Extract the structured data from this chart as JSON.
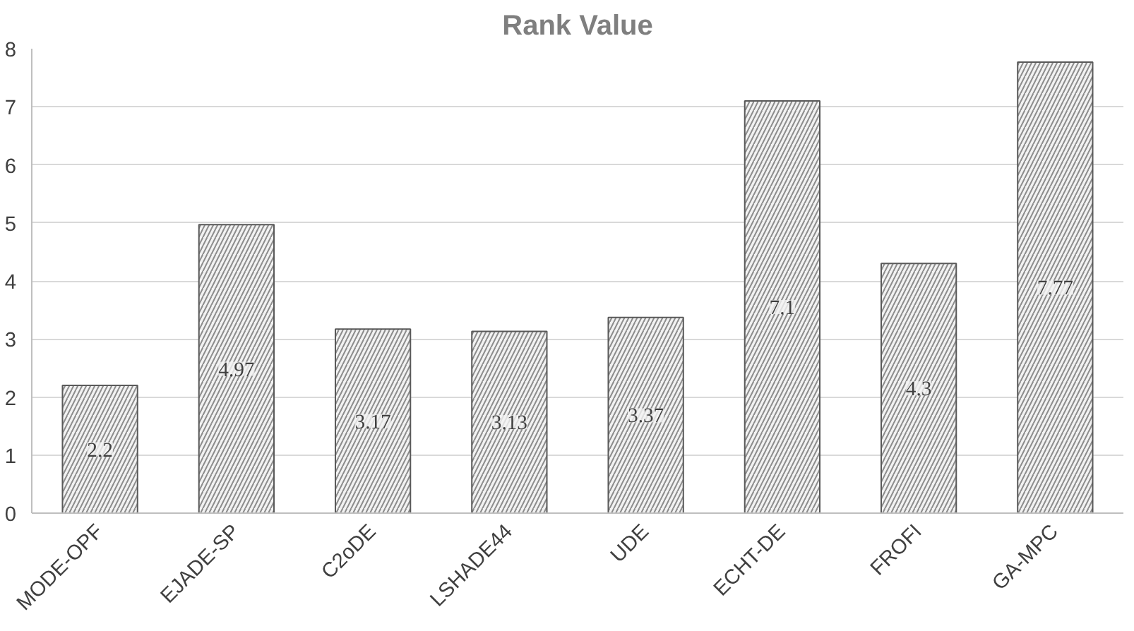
{
  "chart_data": {
    "type": "bar",
    "title": "Rank Value",
    "categories": [
      "MODE-OPF",
      "EJADE-SP",
      "C2oDE",
      "LSHADE44",
      "UDE",
      "ECHT-DE",
      "FROFI",
      "GA-MPC"
    ],
    "values": [
      2.2,
      4.97,
      3.17,
      3.13,
      3.37,
      7.1,
      4.3,
      7.77
    ],
    "color": "#f2f2f2",
    "ylim": [
      0,
      8
    ],
    "yticks": [
      0,
      1,
      2,
      3,
      4,
      5,
      6,
      7,
      8
    ],
    "grid": "y",
    "data_labels": true
  }
}
